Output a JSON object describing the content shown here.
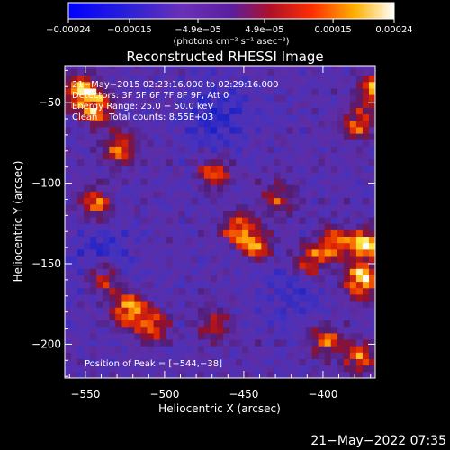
{
  "chart_data": {
    "type": "heatmap",
    "title": "Reconstructed RHESSI Image",
    "xlabel": "Heliocentric X (arcsec)",
    "ylabel": "Heliocentric Y (arcsec)",
    "xlim": [
      -563,
      -367
    ],
    "ylim": [
      -221,
      -27
    ],
    "x_ticks": [
      -550,
      -500,
      -450,
      -400
    ],
    "x_tick_labels": [
      "−550",
      "−500",
      "−450",
      "−400"
    ],
    "y_ticks": [
      -50,
      -100,
      -150,
      -200
    ],
    "y_tick_labels": [
      "−50",
      "−100",
      "−150",
      "−200"
    ],
    "colorbar": {
      "range": [
        -0.00024,
        0.00024
      ],
      "tick_values": [
        -0.00024,
        -0.00015,
        -4.9e-05,
        4.9e-05,
        0.00015,
        0.00024
      ],
      "tick_labels": [
        "−0.00024",
        "−0.00015",
        "−4.9e−05",
        "4.9e−05",
        "0.00015",
        "0.00024"
      ],
      "unit_label": "(photons cm⁻² s⁻¹ asec⁻²)"
    },
    "annotations": [
      "21−May−2015 02:23:16.000 to 02:29:16.000",
      "Detectors: 3F 5F 6F 7F 8F 9F, Att 0",
      "Energy Range: 25.0 − 50.0 keV",
      "Clean    Total counts: 8.55E+03"
    ],
    "peak_label": "Position of Peak = [−544,−38]",
    "peak_position": [
      -544,
      -38
    ],
    "bright_regions": [
      {
        "x": -555,
        "y": -45,
        "level": 0.85
      },
      {
        "x": -545,
        "y": -55,
        "level": 0.7
      },
      {
        "x": -530,
        "y": -80,
        "level": 0.6
      },
      {
        "x": -545,
        "y": -115,
        "level": 0.55
      },
      {
        "x": -540,
        "y": -160,
        "level": 0.6
      },
      {
        "x": -525,
        "y": -180,
        "level": 0.85
      },
      {
        "x": -510,
        "y": -190,
        "level": 0.6
      },
      {
        "x": -470,
        "y": -95,
        "level": 0.55
      },
      {
        "x": -455,
        "y": -130,
        "level": 0.65
      },
      {
        "x": -445,
        "y": -140,
        "level": 0.6
      },
      {
        "x": -430,
        "y": -110,
        "level": 0.45
      },
      {
        "x": -410,
        "y": -150,
        "level": 0.6
      },
      {
        "x": -395,
        "y": -140,
        "level": 0.7
      },
      {
        "x": -375,
        "y": -140,
        "level": 0.9
      },
      {
        "x": -378,
        "y": -162,
        "level": 0.95
      },
      {
        "x": -380,
        "y": -65,
        "level": 0.6
      },
      {
        "x": -370,
        "y": -45,
        "level": 0.75
      },
      {
        "x": -470,
        "y": -190,
        "level": 0.45
      },
      {
        "x": -400,
        "y": -200,
        "level": 0.55
      },
      {
        "x": -380,
        "y": -210,
        "level": 0.6
      }
    ]
  },
  "timestamp": "21−May−2022 07:35"
}
